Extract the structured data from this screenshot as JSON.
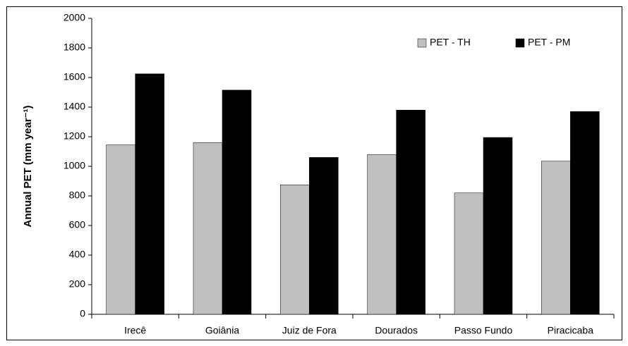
{
  "chart_data": {
    "type": "bar",
    "y_label": "Annual PET (mm year⁻¹)",
    "categories": [
      "Irecê",
      "Goiânia",
      "Juiz de Fora",
      "Dourados",
      "Passo Fundo",
      "Piracicaba"
    ],
    "series": [
      {
        "name": "PET - TH",
        "color": "#c0c0c0",
        "values": [
          1145,
          1160,
          875,
          1080,
          820,
          1035
        ]
      },
      {
        "name": "PET - PM",
        "color": "#000000",
        "values": [
          1625,
          1515,
          1060,
          1380,
          1195,
          1370
        ]
      }
    ],
    "ylim": [
      0,
      2000
    ],
    "yticks": [
      0,
      200,
      400,
      600,
      800,
      1000,
      1200,
      1400,
      1600,
      1800,
      2000
    ],
    "grid": false,
    "legend": "top-right"
  }
}
